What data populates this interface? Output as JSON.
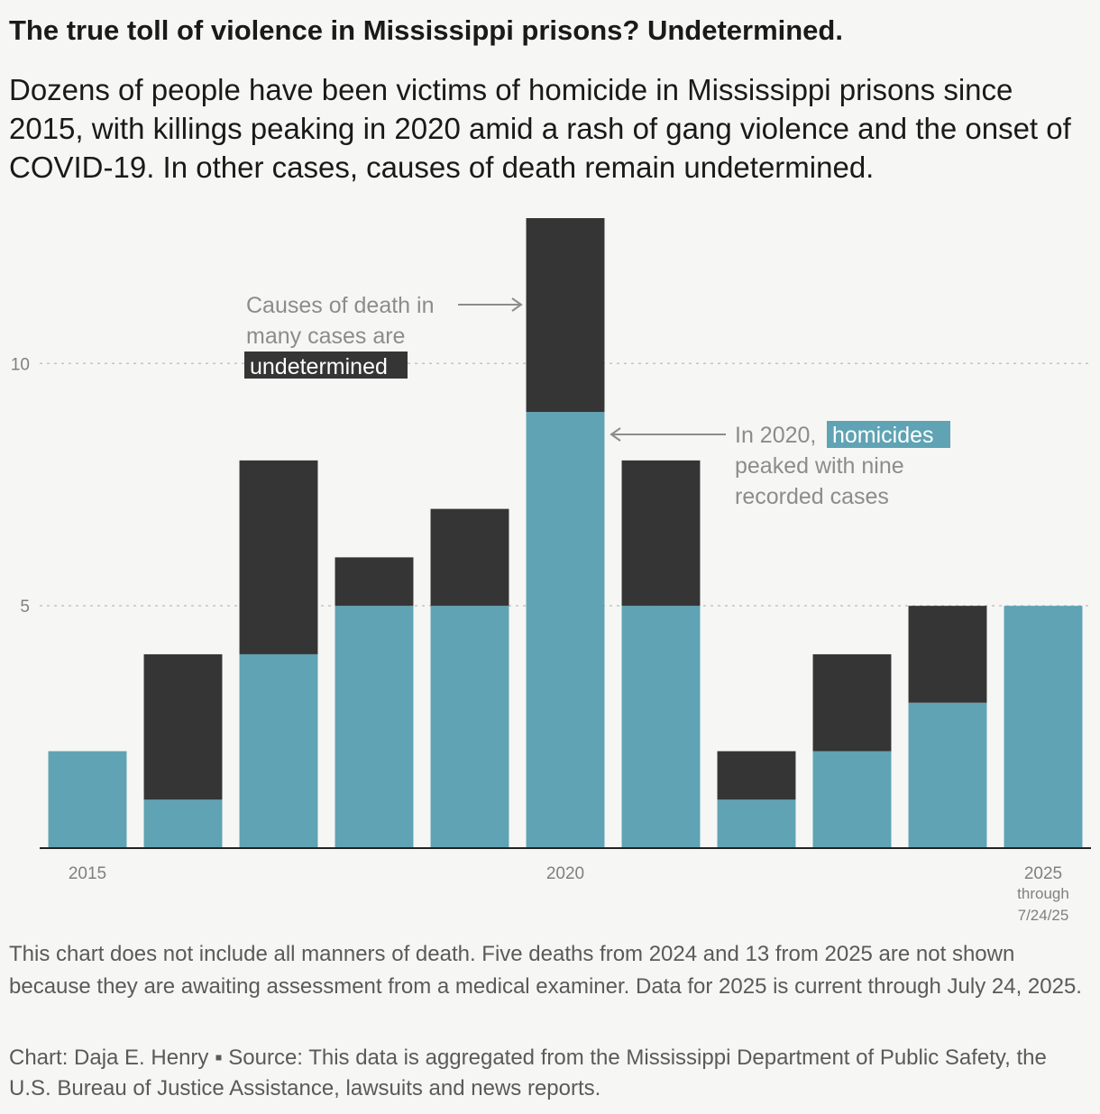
{
  "header": {
    "title": "The true toll of violence in Mississippi prisons? Undetermined.",
    "subtitle": "Dozens of people have been victims of homicide in Mississippi prisons since 2015, with killings peaking in 2020 amid a rash of gang violence and the onset of COVID-19. In other cases, causes of death remain undetermined."
  },
  "colors": {
    "homicide": "#5fa3b4",
    "undetermined": "#353535",
    "background": "#f6f6f4",
    "annotation": "#8c8c8c"
  },
  "chart_data": {
    "type": "bar",
    "stacked": true,
    "categories": [
      "2015",
      "2016",
      "2017",
      "2018",
      "2019",
      "2020",
      "2021",
      "2022",
      "2023",
      "2024",
      "2025"
    ],
    "series": [
      {
        "name": "homicides",
        "color": "#5fa3b4",
        "values": [
          2,
          1,
          4,
          5,
          5,
          9,
          5,
          1,
          2,
          3,
          5
        ]
      },
      {
        "name": "undetermined",
        "color": "#353535",
        "values": [
          0,
          3,
          4,
          1,
          2,
          4,
          3,
          1,
          2,
          2,
          0
        ]
      }
    ],
    "ylim": [
      0,
      13
    ],
    "yticks": [
      5,
      10
    ],
    "xtick_labels": [
      {
        "category": "2015",
        "label": "2015"
      },
      {
        "category": "2020",
        "label": "2020"
      },
      {
        "category": "2025",
        "label": "2025",
        "sublines": [
          "through",
          "7/24/25"
        ]
      }
    ],
    "grid": "horizontal dashed",
    "annotations": {
      "undetermined": {
        "lines": [
          "Causes of death in",
          "many cases are"
        ],
        "highlight": "undetermined",
        "points_to": "2020 undetermined segment"
      },
      "homicides": {
        "prefix": "In 2020,",
        "highlight": "homicides",
        "lines": [
          "peaked with nine",
          "recorded cases"
        ],
        "points_to": "2020 homicide segment"
      }
    }
  },
  "footer": {
    "note": "This chart does not include all manners of death. Five deaths from 2024 and 13 from 2025 are not shown because they are awaiting assessment from a medical examiner. Data for 2025 is current through July 24, 2025.",
    "credit": "Chart: Daja E. Henry ▪ Source: This data is aggregated from the Mississippi Department of Public Safety, the U.S. Bureau of Justice Assistance, lawsuits and news reports."
  }
}
